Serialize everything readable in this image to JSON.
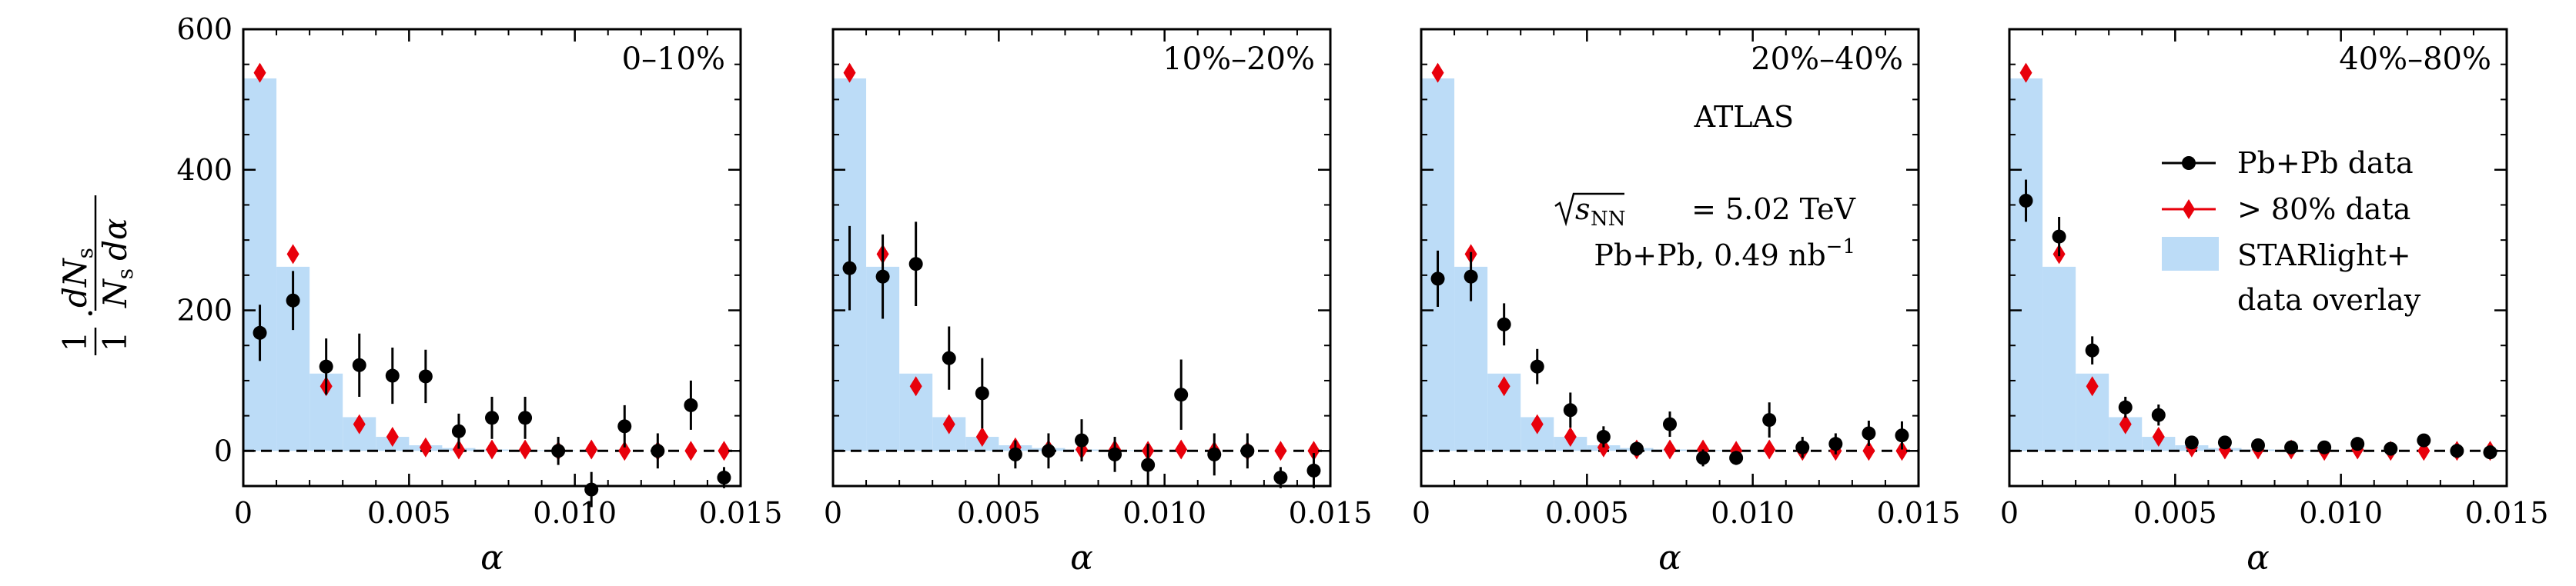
{
  "chart_data": {
    "type": "scatter",
    "ylabel": {
      "frac_top": "1",
      "frac_num": "dN",
      "frac_num_sub": "s",
      "frac_den": "N",
      "frac_den_sub": "s",
      "frac_den_tail": "dα"
    },
    "ylim": [
      -50,
      600
    ],
    "yticks": [
      0,
      200,
      400,
      600
    ],
    "xlim": [
      0,
      0.015
    ],
    "xticks": [
      0,
      0.005,
      0.01,
      0.015
    ],
    "xtick_labels": [
      "0",
      "0.005",
      "0.010",
      "0.015"
    ],
    "xlabel": "α",
    "hist_bin_edges": [
      0,
      0.001,
      0.002,
      0.003,
      0.004,
      0.005,
      0.006,
      0.007,
      0.008,
      0.009,
      0.01,
      0.011,
      0.012,
      0.013,
      0.014,
      0.015
    ],
    "starlight_values": [
      530,
      262,
      110,
      48,
      20,
      8,
      4,
      2,
      1,
      1,
      0,
      0,
      0,
      0,
      0
    ],
    "ref_80_data": [
      [
        0.0005,
        538,
        12
      ],
      [
        0.0015,
        280,
        10
      ],
      [
        0.0025,
        92,
        8
      ],
      [
        0.0035,
        38,
        6
      ],
      [
        0.0045,
        20,
        5
      ],
      [
        0.0055,
        5,
        4
      ],
      [
        0.0065,
        2,
        3
      ],
      [
        0.0075,
        2,
        3
      ],
      [
        0.0085,
        2,
        3
      ],
      [
        0.0095,
        0,
        3
      ],
      [
        0.0105,
        2,
        3
      ],
      [
        0.0115,
        0,
        3
      ],
      [
        0.0125,
        0,
        3
      ],
      [
        0.0135,
        0,
        3
      ],
      [
        0.0145,
        0,
        3
      ]
    ],
    "panels": [
      {
        "label": "0–10%",
        "pbpb": [
          [
            0.0005,
            168,
            40
          ],
          [
            0.0015,
            214,
            42
          ],
          [
            0.0025,
            120,
            40
          ],
          [
            0.0035,
            122,
            45
          ],
          [
            0.0045,
            107,
            40
          ],
          [
            0.0055,
            106,
            38
          ],
          [
            0.0065,
            28,
            25
          ],
          [
            0.0075,
            47,
            30
          ],
          [
            0.0085,
            47,
            30
          ],
          [
            0.0095,
            0,
            20
          ],
          [
            0.0105,
            -55,
            25
          ],
          [
            0.0115,
            35,
            30
          ],
          [
            0.0125,
            0,
            25
          ],
          [
            0.0135,
            65,
            35
          ],
          [
            0.0145,
            -38,
            15
          ]
        ]
      },
      {
        "label": "10%–20%",
        "pbpb": [
          [
            0.0005,
            260,
            60
          ],
          [
            0.0015,
            248,
            60
          ],
          [
            0.0025,
            266,
            60
          ],
          [
            0.0035,
            132,
            45
          ],
          [
            0.0045,
            82,
            50
          ],
          [
            0.0055,
            -5,
            20
          ],
          [
            0.0065,
            0,
            25
          ],
          [
            0.0075,
            15,
            30
          ],
          [
            0.0085,
            -5,
            25
          ],
          [
            0.0095,
            -20,
            30
          ],
          [
            0.0105,
            80,
            50
          ],
          [
            0.0115,
            -5,
            30
          ],
          [
            0.0125,
            0,
            25
          ],
          [
            0.0135,
            -38,
            15
          ],
          [
            0.0145,
            -28,
            25
          ]
        ]
      },
      {
        "label": "20%–40%",
        "pbpb": [
          [
            0.0005,
            245,
            40
          ],
          [
            0.0015,
            248,
            35
          ],
          [
            0.0025,
            180,
            30
          ],
          [
            0.0035,
            120,
            25
          ],
          [
            0.0045,
            58,
            25
          ],
          [
            0.0055,
            20,
            15
          ],
          [
            0.0065,
            3,
            10
          ],
          [
            0.0075,
            38,
            18
          ],
          [
            0.0085,
            -10,
            12
          ],
          [
            0.0095,
            -10,
            10
          ],
          [
            0.0105,
            44,
            25
          ],
          [
            0.0115,
            5,
            15
          ],
          [
            0.0125,
            10,
            15
          ],
          [
            0.0135,
            25,
            18
          ],
          [
            0.0145,
            22,
            20
          ]
        ]
      },
      {
        "label": "40%–80%",
        "pbpb": [
          [
            0.0005,
            356,
            30
          ],
          [
            0.0015,
            305,
            28
          ],
          [
            0.0025,
            143,
            20
          ],
          [
            0.0035,
            62,
            15
          ],
          [
            0.0045,
            51,
            15
          ],
          [
            0.0055,
            12,
            8
          ],
          [
            0.0065,
            12,
            8
          ],
          [
            0.0075,
            8,
            6
          ],
          [
            0.0085,
            5,
            6
          ],
          [
            0.0095,
            5,
            5
          ],
          [
            0.0105,
            10,
            6
          ],
          [
            0.0115,
            3,
            5
          ],
          [
            0.0125,
            15,
            8
          ],
          [
            0.0135,
            0,
            5
          ],
          [
            0.0145,
            -2,
            5
          ]
        ]
      }
    ],
    "annotations": {
      "experiment": "ATLAS",
      "energy_sqrt": "s",
      "energy_sub": "NN",
      "energy_rest": " = 5.02 TeV",
      "dataset_main": "Pb+Pb, 0.49 nb",
      "dataset_sup": "−1"
    },
    "legend": {
      "pbpb": "Pb+Pb data",
      "ref_80": "> 80% data",
      "starlight_line1": "STARlight+",
      "starlight_line2": "data overlay"
    },
    "colors": {
      "pbpb": "#000000",
      "ref_80": "#e8000b",
      "starlight": "#bcdcf7"
    }
  }
}
